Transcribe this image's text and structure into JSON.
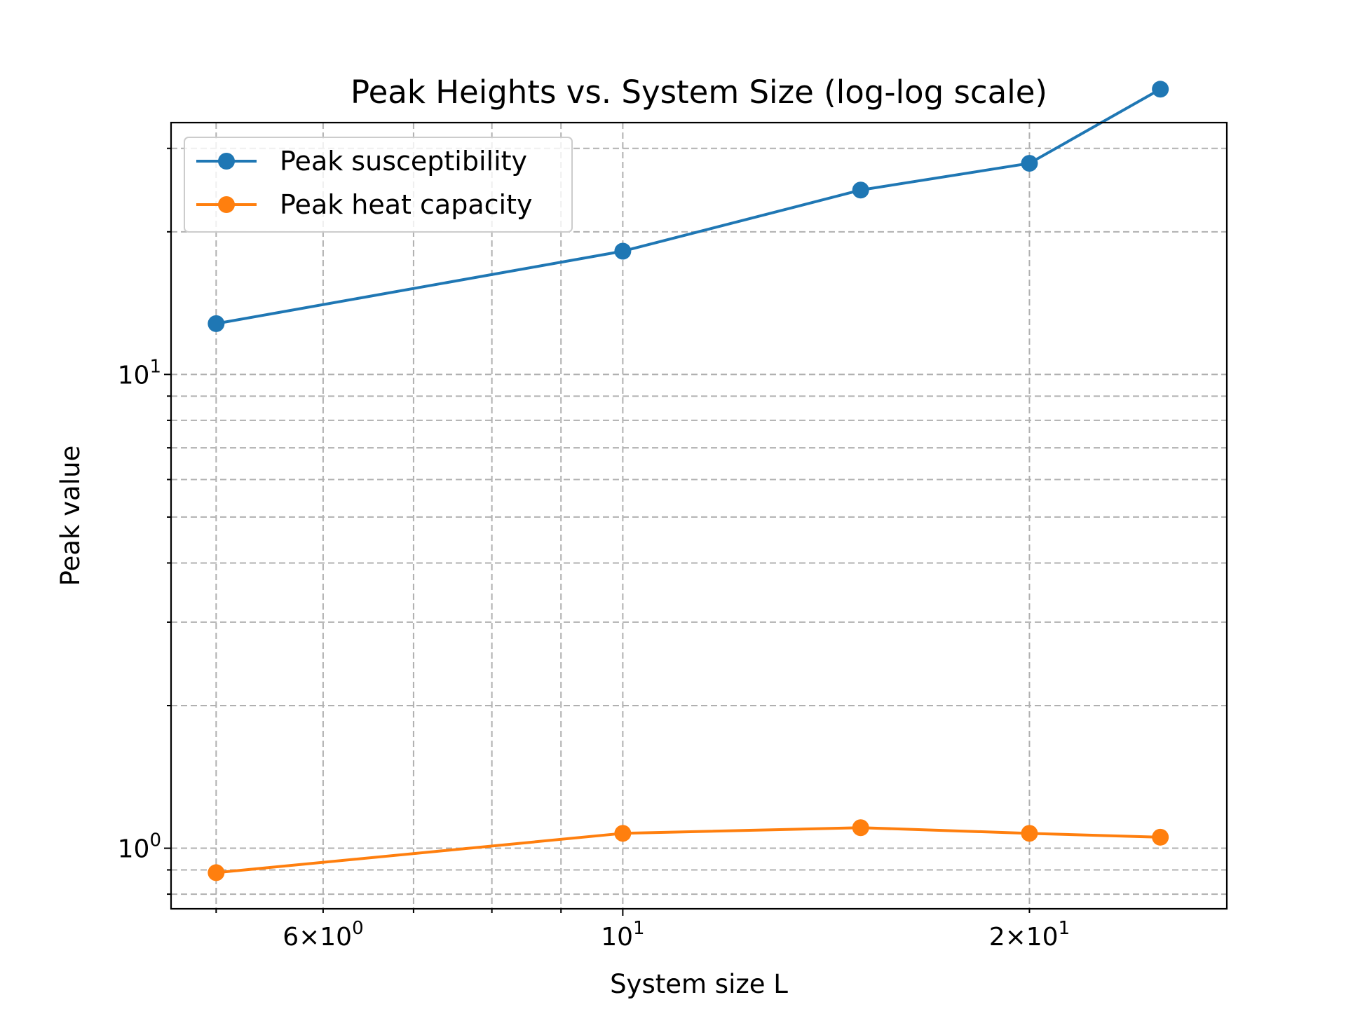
{
  "chart_data": {
    "type": "line",
    "title": "Peak Heights vs. System Size (log-log scale)",
    "xlabel": "System size L",
    "ylabel": "Peak value",
    "xscale": "log",
    "yscale": "log",
    "xlim": [
      4.63,
      28.0
    ],
    "ylim": [
      0.745,
      34.0
    ],
    "grid": true,
    "legend_position": "top-left",
    "x": [
      5,
      10,
      15,
      20,
      25
    ],
    "series": [
      {
        "name": "Peak susceptibility",
        "color": "#1f77b4",
        "values": [
          12.8,
          18.2,
          24.5,
          27.9,
          40.0
        ]
      },
      {
        "name": "Peak heat capacity",
        "color": "#ff7f0e",
        "values": [
          0.888,
          1.075,
          1.105,
          1.075,
          1.055
        ]
      }
    ],
    "x_ticks": [
      {
        "value": 6,
        "base": "6",
        "times": "×",
        "mant": "10",
        "exp": "0"
      },
      {
        "value": 10,
        "base": "",
        "times": "",
        "mant": "10",
        "exp": "1"
      },
      {
        "value": 20,
        "base": "2",
        "times": "×",
        "mant": "10",
        "exp": "1"
      }
    ],
    "y_ticks": [
      {
        "value": 1,
        "mant": "10",
        "exp": "0"
      },
      {
        "value": 10,
        "mant": "10",
        "exp": "1"
      }
    ]
  }
}
